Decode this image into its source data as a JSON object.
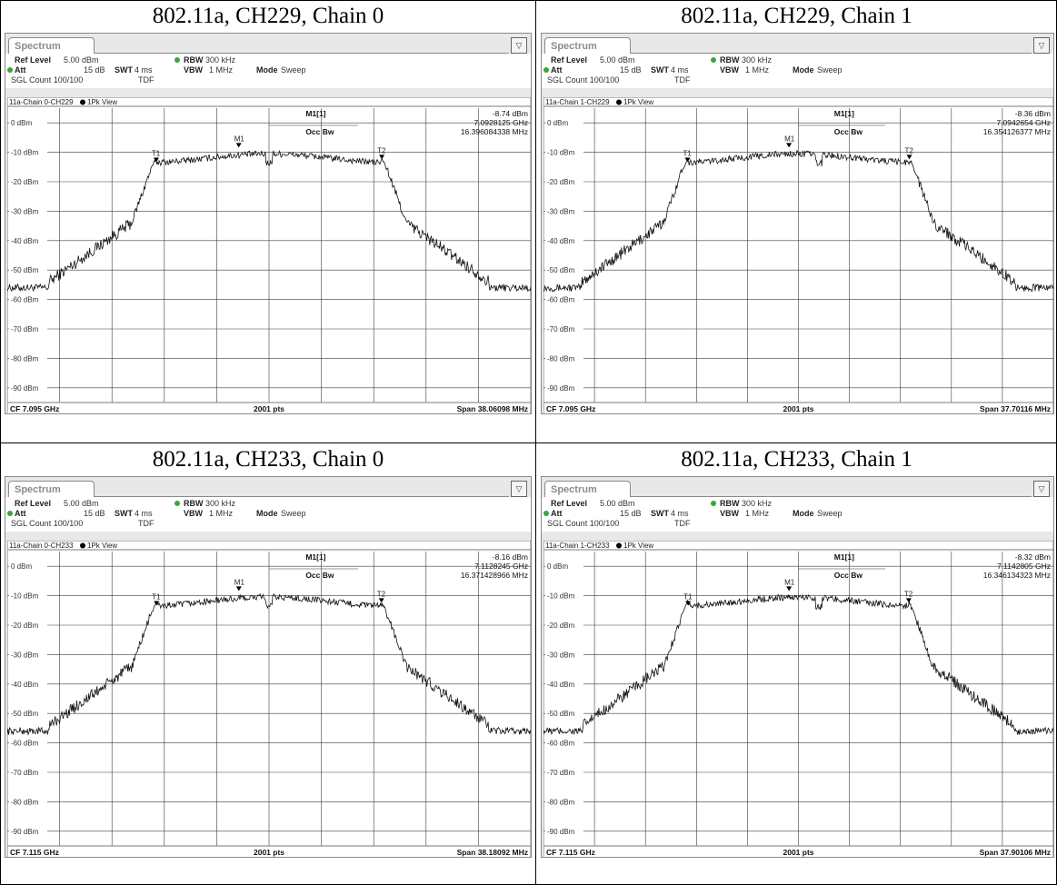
{
  "panels": [
    {
      "caption": "802.11a, CH229, Chain 0",
      "tab": "Spectrum",
      "ref_level_label": "Ref Level",
      "ref_level": "5.00 dBm",
      "att_label": "Att",
      "att": "15 dB",
      "swt_label": "SWT",
      "swt": "4 ms",
      "rbw_label": "RBW",
      "rbw": "300 kHz",
      "vbw_label": "VBW",
      "vbw": "1 MHz",
      "mode_label": "Mode",
      "mode": "Sweep",
      "sgl": "SGL Count 100/100",
      "tdf": "TDF",
      "trace_title": "11a-Chain 0-CH229",
      "view": "1Pk View",
      "marker_label": "M1[1]",
      "marker_level": "-8.74 dBm",
      "marker_freq": "7.0928125 GHz",
      "occ_label": "Occ Bw",
      "occ_value": "16.396084338 MHz",
      "cf": "CF 7.095 GHz",
      "pts": "2001 pts",
      "span": "Span 38.06098 MHz",
      "t1_label": "T1",
      "t2_label": "T2",
      "m1_label": "M1",
      "chart_data": {
        "type": "line",
        "x_range_mhz": [
          -19.03,
          19.03
        ],
        "ylim": [
          -95,
          5
        ],
        "y_ticks": [
          "0 dBm",
          "-10 dBm",
          "-20 dBm",
          "-30 dBm",
          "-40 dBm",
          "-50 dBm",
          "-60 dBm",
          "-70 dBm",
          "-80 dBm",
          "-90 dBm"
        ],
        "marker_offset_mhz": -2.2,
        "t1_mhz": -8.2,
        "t2_mhz": 8.2,
        "noise_floor_dbm": -56,
        "plateau_dbm": -12
      }
    },
    {
      "caption": "802.11a, CH229, Chain 1",
      "tab": "Spectrum",
      "ref_level_label": "Ref Level",
      "ref_level": "5.00 dBm",
      "att_label": "Att",
      "att": "15 dB",
      "swt_label": "SWT",
      "swt": "4 ms",
      "rbw_label": "RBW",
      "rbw": "300 kHz",
      "vbw_label": "VBW",
      "vbw": "1 MHz",
      "mode_label": "Mode",
      "mode": "Sweep",
      "sgl": "SGL Count 100/100",
      "tdf": "TDF",
      "trace_title": "11a-Chain 1-CH229",
      "view": "1Pk View",
      "marker_label": "M1[1]",
      "marker_level": "-8.36 dBm",
      "marker_freq": "7.0942654 GHz",
      "occ_label": "Occ Bw",
      "occ_value": "16.354126377 MHz",
      "cf": "CF 7.095 GHz",
      "pts": "2001 pts",
      "span": "Span 37.70116 MHz",
      "t1_label": "T1",
      "t2_label": "T2",
      "m1_label": "M1",
      "chart_data": {
        "type": "line",
        "x_range_mhz": [
          -18.85,
          18.85
        ],
        "ylim": [
          -95,
          5
        ],
        "y_ticks": [
          "0 dBm",
          "-10 dBm",
          "-20 dBm",
          "-30 dBm",
          "-40 dBm",
          "-50 dBm",
          "-60 dBm",
          "-70 dBm",
          "-80 dBm",
          "-90 dBm"
        ],
        "marker_offset_mhz": -0.7,
        "t1_mhz": -8.2,
        "t2_mhz": 8.2,
        "noise_floor_dbm": -56,
        "plateau_dbm": -12
      }
    },
    {
      "caption": "802.11a, CH233, Chain 0",
      "tab": "Spectrum",
      "ref_level_label": "Ref Level",
      "ref_level": "5.00 dBm",
      "att_label": "Att",
      "att": "15 dB",
      "swt_label": "SWT",
      "swt": "4 ms",
      "rbw_label": "RBW",
      "rbw": "300 kHz",
      "vbw_label": "VBW",
      "vbw": "1 MHz",
      "mode_label": "Mode",
      "mode": "Sweep",
      "sgl": "SGL Count 100/100",
      "tdf": "TDF",
      "trace_title": "11a-Chain 0-CH233",
      "view": "1Pk View",
      "marker_label": "M1[1]",
      "marker_level": "-8.16 dBm",
      "marker_freq": "7.1128245 GHz",
      "occ_label": "Occ Bw",
      "occ_value": "16.371428966 MHz",
      "cf": "CF 7.115 GHz",
      "pts": "2001 pts",
      "span": "Span 38.18092 MHz",
      "t1_label": "T1",
      "t2_label": "T2",
      "m1_label": "M1",
      "chart_data": {
        "type": "line",
        "x_range_mhz": [
          -19.09,
          19.09
        ],
        "ylim": [
          -95,
          5
        ],
        "y_ticks": [
          "0 dBm",
          "-10 dBm",
          "-20 dBm",
          "-30 dBm",
          "-40 dBm",
          "-50 dBm",
          "-60 dBm",
          "-70 dBm",
          "-80 dBm",
          "-90 dBm"
        ],
        "marker_offset_mhz": -2.2,
        "t1_mhz": -8.2,
        "t2_mhz": 8.2,
        "noise_floor_dbm": -56,
        "plateau_dbm": -12
      }
    },
    {
      "caption": "802.11a, CH233, Chain 1",
      "tab": "Spectrum",
      "ref_level_label": "Ref Level",
      "ref_level": "5.00 dBm",
      "att_label": "Att",
      "att": "15 dB",
      "swt_label": "SWT",
      "swt": "4 ms",
      "rbw_label": "RBW",
      "rbw": "300 kHz",
      "vbw_label": "VBW",
      "vbw": "1 MHz",
      "mode_label": "Mode",
      "mode": "Sweep",
      "sgl": "SGL Count 100/100",
      "tdf": "TDF",
      "trace_title": "11a-Chain 1-CH233",
      "view": "1Pk View",
      "marker_label": "M1[1]",
      "marker_level": "-8.32 dBm",
      "marker_freq": "7.1142805 GHz",
      "occ_label": "Occ Bw",
      "occ_value": "16.346134323 MHz",
      "cf": "CF 7.115 GHz",
      "pts": "2001 pts",
      "span": "Span 37.90106 MHz",
      "t1_label": "T1",
      "t2_label": "T2",
      "m1_label": "M1",
      "chart_data": {
        "type": "line",
        "x_range_mhz": [
          -18.95,
          18.95
        ],
        "ylim": [
          -95,
          5
        ],
        "y_ticks": [
          "0 dBm",
          "-10 dBm",
          "-20 dBm",
          "-30 dBm",
          "-40 dBm",
          "-50 dBm",
          "-60 dBm",
          "-70 dBm",
          "-80 dBm",
          "-90 dBm"
        ],
        "marker_offset_mhz": -0.7,
        "t1_mhz": -8.2,
        "t2_mhz": 8.2,
        "noise_floor_dbm": -56,
        "plateau_dbm": -12
      }
    }
  ]
}
